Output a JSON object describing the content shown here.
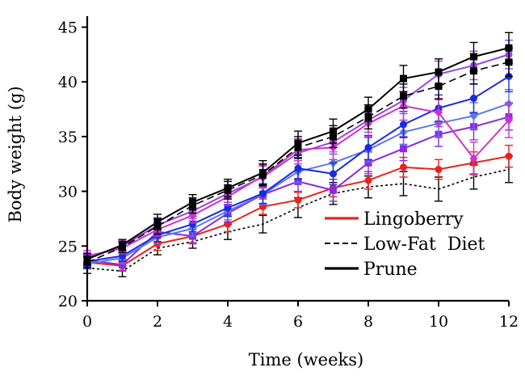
{
  "chart_data": {
    "type": "line",
    "title": "",
    "xlabel": "Time (weeks)",
    "ylabel": "Body weight (g)",
    "xlim": [
      0,
      12
    ],
    "ylim": [
      20,
      46
    ],
    "x_ticks": [
      0,
      2,
      4,
      6,
      8,
      10,
      12
    ],
    "x_tick_labels": [
      "0",
      "2",
      "4",
      "6",
      "8",
      "10",
      "12"
    ],
    "y_ticks": [
      20,
      25,
      30,
      35,
      40,
      45
    ],
    "y_tick_labels": [
      "20",
      "25",
      "30",
      "35",
      "40",
      "45"
    ],
    "legend": {
      "placement": "bottom-right",
      "entries": [
        {
          "label": "Lingoberry",
          "color": "#e8231f",
          "dash": "solid"
        },
        {
          "label": "Low-Fat  Diet",
          "color": "#000000",
          "dash": "dashed"
        },
        {
          "label": "Prune",
          "color": "#000000",
          "dash": "solid"
        }
      ]
    },
    "x": [
      0,
      1,
      2,
      3,
      4,
      5,
      6,
      7,
      8,
      9,
      10,
      11,
      12
    ],
    "series": [
      {
        "name": "Prune",
        "color": "#000000",
        "dash": "solid",
        "marker": "square",
        "values": [
          23.8,
          25.1,
          27.2,
          29.0,
          30.3,
          31.7,
          34.4,
          35.5,
          37.5,
          40.3,
          40.9,
          42.3,
          43.1
        ],
        "errors": [
          0.5,
          0.5,
          0.7,
          0.7,
          0.8,
          1.1,
          1.1,
          1.1,
          1.1,
          1.2,
          1.2,
          1.3,
          1.4
        ]
      },
      {
        "name": "Unlabeled dashed (black)",
        "color": "#000000",
        "dash": "dashed",
        "marker": "square",
        "values": [
          23.5,
          24.9,
          26.8,
          28.7,
          30.1,
          31.5,
          34.0,
          35.0,
          36.8,
          38.7,
          39.6,
          41.0,
          41.8
        ],
        "errors": [
          0.5,
          0.5,
          0.7,
          0.7,
          0.8,
          1.0,
          1.0,
          1.0,
          1.1,
          1.1,
          1.2,
          1.2,
          1.3
        ]
      },
      {
        "name": "Unlabeled magenta",
        "color": "#cc33cc",
        "dash": "solid",
        "marker": "diamond",
        "values": [
          24.1,
          24.8,
          26.5,
          27.8,
          29.5,
          31.4,
          33.8,
          34.0,
          36.2,
          37.8,
          37.2,
          33.0,
          36.5
        ],
        "errors": [
          0.5,
          0.5,
          0.6,
          0.7,
          0.8,
          1.0,
          1.0,
          1.1,
          1.2,
          1.3,
          1.3,
          1.5,
          1.6
        ]
      },
      {
        "name": "Unlabeled violet",
        "color": "#9a44e0",
        "dash": "solid",
        "marker": "circle",
        "values": [
          23.9,
          25.0,
          26.9,
          28.2,
          29.8,
          31.3,
          33.5,
          34.5,
          36.5,
          38.3,
          40.7,
          41.5,
          42.5
        ],
        "errors": [
          0.5,
          0.5,
          0.7,
          0.7,
          0.8,
          1.0,
          1.0,
          1.1,
          1.1,
          1.2,
          1.2,
          1.3,
          1.3
        ]
      },
      {
        "name": "Unlabeled blue",
        "color": "#1a2ae0",
        "dash": "solid",
        "marker": "circle",
        "values": [
          23.6,
          24.1,
          26.0,
          27.0,
          28.5,
          29.8,
          32.1,
          31.6,
          34.0,
          36.1,
          37.6,
          38.5,
          40.5
        ],
        "errors": [
          0.5,
          0.5,
          0.6,
          0.7,
          0.8,
          0.9,
          1.0,
          1.0,
          1.1,
          1.2,
          1.2,
          1.3,
          1.4
        ]
      },
      {
        "name": "Unlabeled light blue",
        "color": "#5a78e8",
        "dash": "solid",
        "marker": "diamond",
        "values": [
          23.4,
          23.9,
          25.8,
          26.6,
          28.2,
          29.7,
          31.8,
          32.6,
          33.8,
          35.4,
          36.2,
          36.9,
          38.0
        ],
        "errors": [
          0.5,
          0.5,
          0.6,
          0.7,
          0.8,
          0.9,
          1.0,
          1.0,
          1.1,
          1.1,
          1.2,
          1.2,
          1.3
        ]
      },
      {
        "name": "Unlabeled purple",
        "color": "#8a2be2",
        "dash": "solid",
        "marker": "square",
        "values": [
          23.7,
          23.3,
          26.3,
          25.9,
          28.0,
          29.7,
          30.9,
          30.1,
          32.6,
          33.9,
          35.2,
          35.9,
          36.8
        ],
        "errors": [
          0.5,
          0.5,
          0.6,
          0.7,
          0.8,
          0.9,
          0.9,
          1.0,
          1.0,
          1.1,
          1.1,
          1.2,
          1.2
        ]
      },
      {
        "name": "Lingoberry",
        "color": "#e8231f",
        "dash": "solid",
        "marker": "circle",
        "values": [
          23.5,
          23.2,
          25.2,
          25.9,
          27.0,
          28.6,
          29.2,
          30.3,
          31.0,
          32.2,
          32.0,
          32.6,
          33.2
        ],
        "errors": [
          0.5,
          0.5,
          0.6,
          0.6,
          0.7,
          0.7,
          0.7,
          0.8,
          0.8,
          0.9,
          0.9,
          1.0,
          1.0
        ]
      },
      {
        "name": "Low-Fat  Diet",
        "color": "#000000",
        "dash": "dotted",
        "marker": "none",
        "values": [
          23.0,
          22.7,
          24.8,
          25.4,
          26.3,
          27.0,
          28.5,
          29.8,
          30.4,
          30.7,
          30.2,
          31.3,
          32.0
        ],
        "errors": [
          0.5,
          0.5,
          0.6,
          0.6,
          0.7,
          0.8,
          0.9,
          1.0,
          1.0,
          1.1,
          1.1,
          1.1,
          1.2
        ]
      }
    ]
  }
}
